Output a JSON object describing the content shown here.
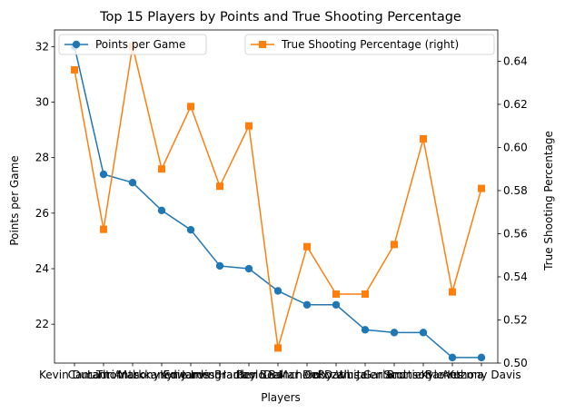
{
  "chart_data": {
    "type": "line",
    "title": "Top 15 Players by Points and True Shooting Percentage",
    "xlabel": "Players",
    "ylabel_left": "Points per Game",
    "ylabel_right": "True Shooting Percentage",
    "categories": [
      "Kevin Durant",
      "Cam Thomas",
      "Lauri Markkanen",
      "Anthony Edwards",
      "Kyrie Irving",
      "James Harden",
      "Bradley Beal",
      "Paolo Banchero",
      "DeMar DeRozan",
      "Coby White",
      "Darius Garland",
      "Jalen Brunson",
      "Scottie Barnes",
      "Kyle Kuzma",
      "Anthony Davis"
    ],
    "ylim_left": [
      20.6,
      32.6
    ],
    "ylim_right": [
      0.5,
      0.6545
    ],
    "yticks_left": [
      22,
      24,
      26,
      28,
      30,
      32
    ],
    "yticks_right": [
      0.5,
      0.52,
      0.54,
      0.56,
      0.58,
      0.6,
      0.62,
      0.64
    ],
    "series": [
      {
        "name": "Points per Game",
        "axis": "left",
        "color": "#1f77b4",
        "marker": "circle",
        "values": [
          32.0,
          27.4,
          27.1,
          26.1,
          25.4,
          24.1,
          24.0,
          23.2,
          22.7,
          22.7,
          21.8,
          21.7,
          21.7,
          20.8,
          20.8
        ]
      },
      {
        "name": "True Shooting Percentage (right)",
        "axis": "right",
        "color": "#ff7f0e",
        "marker": "square",
        "values": [
          0.636,
          0.562,
          0.647,
          0.59,
          0.619,
          0.582,
          0.61,
          0.507,
          0.554,
          0.532,
          0.532,
          0.555,
          0.604,
          0.533,
          0.581
        ]
      }
    ],
    "legend": [
      {
        "label": "Points per Game",
        "placement": "top-left"
      },
      {
        "label": "True Shooting Percentage (right)",
        "placement": "top-right"
      }
    ],
    "grid": false
  }
}
